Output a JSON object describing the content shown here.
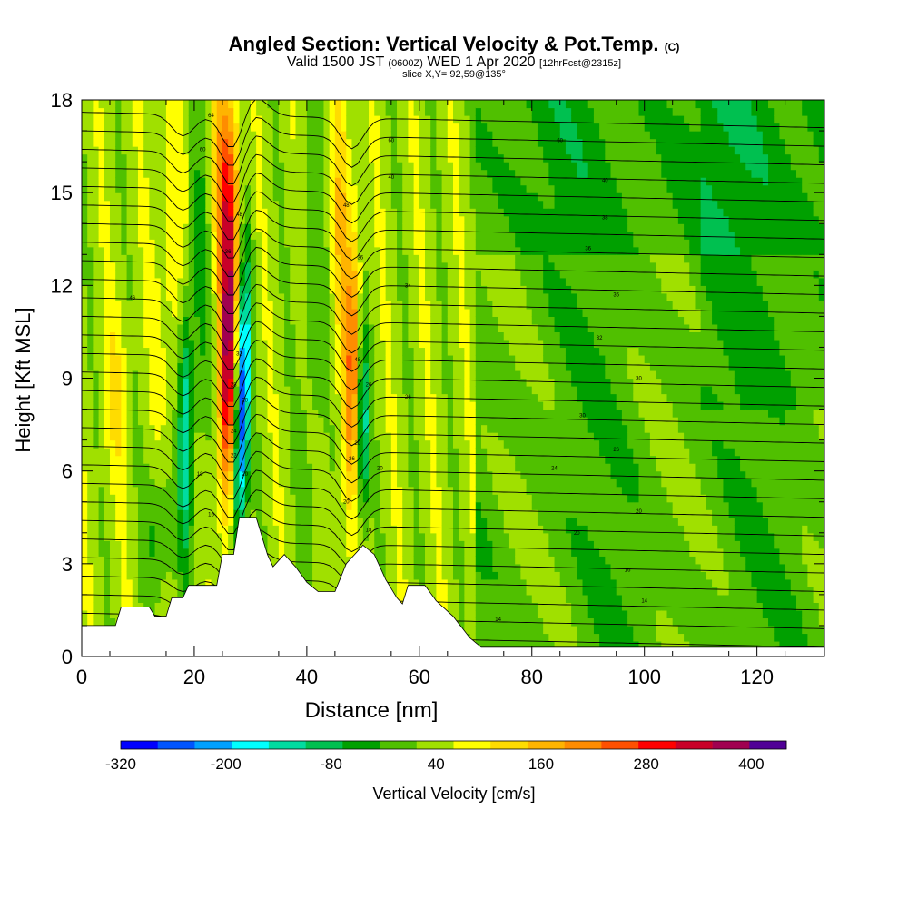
{
  "titles": {
    "main": "Angled Section: Vertical Velocity & Pot.Temp.",
    "main_unit": "(C)",
    "valid_prefix": "Valid 1500 JST",
    "valid_utc": "(0600Z)",
    "valid_date": "WED 1 Apr 2020",
    "forecast": "[12hrFcst@2315z]",
    "slice": "slice X,Y= 92,59@135°"
  },
  "chart_data": {
    "type": "heatmap",
    "title": "Angled Section: Vertical Velocity & Pot.Temp. (C)",
    "xlabel": "Distance [nm]",
    "ylabel": "Height [Kft MSL]",
    "xlim": [
      0,
      132
    ],
    "ylim": [
      0,
      18
    ],
    "x_ticks": [
      0,
      20,
      40,
      60,
      80,
      100,
      120
    ],
    "y_ticks": [
      0,
      3,
      6,
      9,
      12,
      15,
      18
    ],
    "colorbar": {
      "label": "Vertical Velocity [cm/s]",
      "tick_labels": [
        "-320",
        "-200",
        "-80",
        "40",
        "160",
        "280",
        "400"
      ],
      "tick_values": [
        -320,
        -200,
        -80,
        40,
        160,
        280,
        400
      ],
      "min": -320,
      "max": 440,
      "step": 40,
      "colors": [
        "#0000ff",
        "#0055ff",
        "#00a0ff",
        "#00ffff",
        "#00dca0",
        "#00c050",
        "#00a000",
        "#50c000",
        "#a0e000",
        "#ffff00",
        "#ffdc00",
        "#ffb400",
        "#ff8c00",
        "#ff5000",
        "#ff0000",
        "#c80028",
        "#a00050",
        "#500096"
      ]
    },
    "theta_labels": [
      {
        "x": 23,
        "y": 17.5,
        "text": "64"
      },
      {
        "x": 21.5,
        "y": 16.4,
        "text": "60"
      },
      {
        "x": 55,
        "y": 16.7,
        "text": "60"
      },
      {
        "x": 85,
        "y": 16.7,
        "text": "60"
      },
      {
        "x": 55,
        "y": 15.5,
        "text": "40"
      },
      {
        "x": 93,
        "y": 15.4,
        "text": "40"
      },
      {
        "x": 47,
        "y": 14.6,
        "text": "48"
      },
      {
        "x": 28,
        "y": 14.3,
        "text": "48"
      },
      {
        "x": 93,
        "y": 14.2,
        "text": "38"
      },
      {
        "x": 26,
        "y": 13.1,
        "text": "36"
      },
      {
        "x": 49.5,
        "y": 12.9,
        "text": "36"
      },
      {
        "x": 90,
        "y": 13.2,
        "text": "36"
      },
      {
        "x": 9,
        "y": 11.6,
        "text": "46"
      },
      {
        "x": 58,
        "y": 12.0,
        "text": "34"
      },
      {
        "x": 95,
        "y": 11.7,
        "text": "36"
      },
      {
        "x": 28,
        "y": 9.8,
        "text": "32"
      },
      {
        "x": 49,
        "y": 9.6,
        "text": "48"
      },
      {
        "x": 92,
        "y": 10.3,
        "text": "32"
      },
      {
        "x": 27,
        "y": 8.8,
        "text": "28"
      },
      {
        "x": 51,
        "y": 8.8,
        "text": "26"
      },
      {
        "x": 29,
        "y": 8.3,
        "text": "28"
      },
      {
        "x": 58,
        "y": 8.4,
        "text": "26"
      },
      {
        "x": 99,
        "y": 9.0,
        "text": "30"
      },
      {
        "x": 27,
        "y": 7.3,
        "text": "24"
      },
      {
        "x": 89,
        "y": 7.8,
        "text": "30"
      },
      {
        "x": 49,
        "y": 6.9,
        "text": "20"
      },
      {
        "x": 27,
        "y": 6.5,
        "text": "22"
      },
      {
        "x": 48,
        "y": 6.4,
        "text": "26"
      },
      {
        "x": 95,
        "y": 6.7,
        "text": "26"
      },
      {
        "x": 21,
        "y": 5.9,
        "text": "18"
      },
      {
        "x": 29,
        "y": 5.9,
        "text": "20"
      },
      {
        "x": 53,
        "y": 6.1,
        "text": "20"
      },
      {
        "x": 84,
        "y": 6.1,
        "text": "24"
      },
      {
        "x": 47,
        "y": 5.0,
        "text": "20"
      },
      {
        "x": 23,
        "y": 4.6,
        "text": "16"
      },
      {
        "x": 99,
        "y": 4.7,
        "text": "20"
      },
      {
        "x": 51,
        "y": 4.1,
        "text": "18"
      },
      {
        "x": 88,
        "y": 4.0,
        "text": "20"
      },
      {
        "x": 97,
        "y": 2.8,
        "text": "16"
      },
      {
        "x": 100,
        "y": 1.8,
        "text": "14"
      },
      {
        "x": 74,
        "y": 1.2,
        "text": "14"
      }
    ]
  }
}
